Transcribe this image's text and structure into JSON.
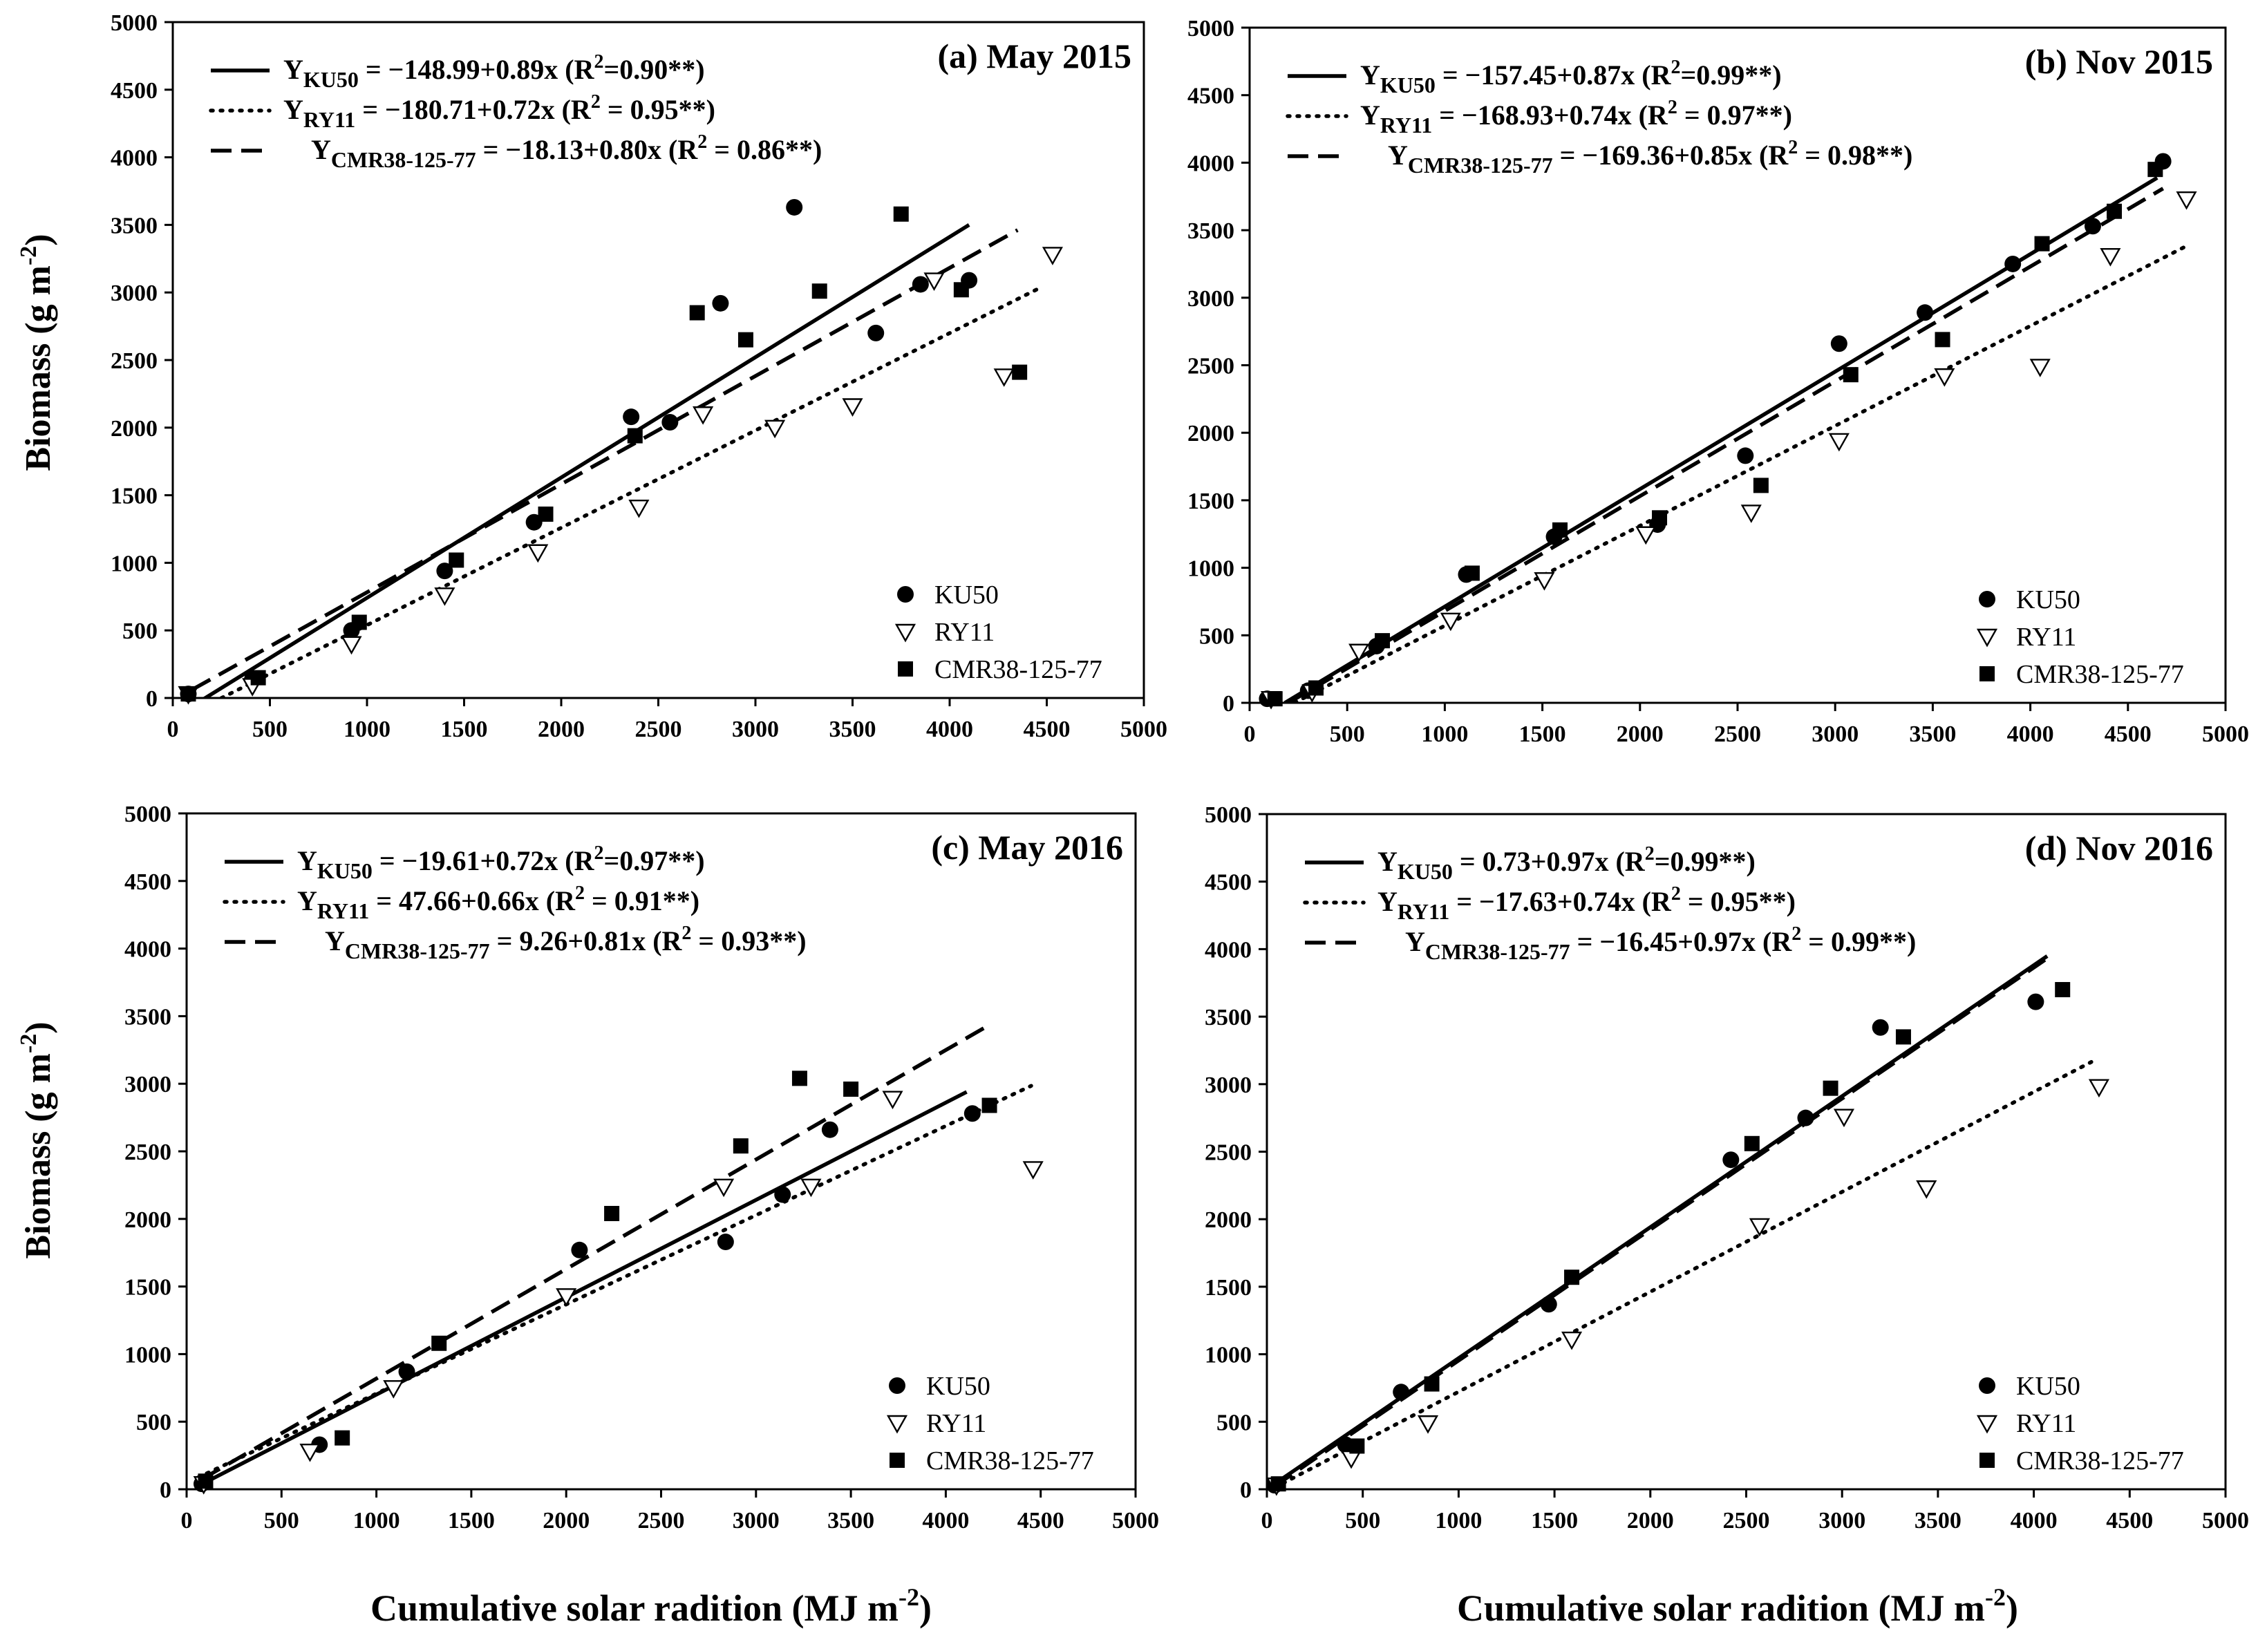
{
  "axis_labels": {
    "ylabel": "Biomass (g m",
    "ylabel_exp": "-2",
    "ylabel_close": ")",
    "xlabel": "Cumulative solar radition (MJ m",
    "xlabel_exp": "-2",
    "xlabel_close": ")"
  },
  "legend_labels": [
    "KU50",
    "RY11",
    "CMR38-125-77"
  ],
  "chart_data": [
    {
      "type": "scatter",
      "title": "(a) May 2015",
      "xlabel": "Cumulative solar radition (MJ m-2)",
      "ylabel": "Biomass (g m-2)",
      "xlim": [
        0,
        5000
      ],
      "ylim": [
        0,
        5000
      ],
      "xticks": [
        "0",
        "500",
        "1000",
        "1500",
        "2000",
        "2500",
        "3000",
        "3500",
        "4000",
        "4500",
        "5000"
      ],
      "yticks": [
        "0",
        "500",
        "1000",
        "1500",
        "2000",
        "2500",
        "3000",
        "3500",
        "4000",
        "4500",
        "5000"
      ],
      "series": [
        {
          "name": "KU50",
          "marker": "circle",
          "line_style": "solid",
          "eq_sub": "KU50",
          "eq_text": " = −148.99+0.89x (R",
          "eq_r2": "=0.90**)",
          "fit": {
            "intercept": -148.99,
            "slope": 0.89,
            "x_range": [
              80,
              4100
            ]
          },
          "points": [
            [
              80,
              30
            ],
            [
              410,
              140
            ],
            [
              920,
              500
            ],
            [
              1400,
              940
            ],
            [
              1860,
              1300
            ],
            [
              2360,
              2080
            ],
            [
              2560,
              2040
            ],
            [
              2820,
              2920
            ],
            [
              3200,
              3630
            ],
            [
              3620,
              2700
            ],
            [
              3850,
              3060
            ],
            [
              4100,
              3090
            ]
          ]
        },
        {
          "name": "RY11",
          "marker": "triangle-down-open",
          "line_style": "dotted",
          "eq_sub": "RY11",
          "eq_text": " = −180.71+0.72x (R",
          "eq_r2": " = 0.95**)",
          "fit": {
            "intercept": -180.71,
            "slope": 0.72,
            "x_range": [
              250,
              4450
            ]
          },
          "points": [
            [
              80,
              30
            ],
            [
              410,
              90
            ],
            [
              920,
              400
            ],
            [
              1400,
              760
            ],
            [
              1880,
              1080
            ],
            [
              2400,
              1410
            ],
            [
              2730,
              2100
            ],
            [
              3100,
              2000
            ],
            [
              3500,
              2160
            ],
            [
              3920,
              3090
            ],
            [
              4280,
              2380
            ],
            [
              4530,
              3280
            ]
          ]
        },
        {
          "name": "CMR38-125-77",
          "marker": "square",
          "line_style": "dashed",
          "eq_sub": "CMR38-125-77",
          "eq_text": " = −18.13+0.80x (R",
          "eq_r2": " = 0.86**)",
          "fit": {
            "intercept": -18.13,
            "slope": 0.8,
            "x_range": [
              100,
              4350
            ]
          },
          "points": [
            [
              80,
              30
            ],
            [
              440,
              150
            ],
            [
              960,
              560
            ],
            [
              1460,
              1020
            ],
            [
              1920,
              1360
            ],
            [
              2380,
              1940
            ],
            [
              2700,
              2850
            ],
            [
              2950,
              2650
            ],
            [
              3330,
              3010
            ],
            [
              3750,
              3580
            ],
            [
              4060,
              3020
            ],
            [
              4360,
              2410
            ]
          ]
        }
      ]
    },
    {
      "type": "scatter",
      "title": "(b) Nov 2015",
      "xlabel": "Cumulative solar radition (MJ m-2)",
      "ylabel": "Biomass (g m-2)",
      "xlim": [
        0,
        5000
      ],
      "ylim": [
        0,
        5000
      ],
      "xticks": [
        "0",
        "500",
        "1000",
        "1500",
        "2000",
        "2500",
        "3000",
        "3500",
        "4000",
        "4500",
        "5000"
      ],
      "yticks": [
        "0",
        "500",
        "1000",
        "1500",
        "2000",
        "2500",
        "3000",
        "3500",
        "4000",
        "4500",
        "5000"
      ],
      "series": [
        {
          "name": "KU50",
          "marker": "circle",
          "line_style": "solid",
          "eq_sub": "KU50",
          "eq_text": " = −157.45+0.87x (R",
          "eq_r2": "=0.99**)",
          "fit": {
            "intercept": -157.45,
            "slope": 0.87,
            "x_range": [
              180,
              4650
            ]
          },
          "points": [
            [
              90,
              30
            ],
            [
              300,
              90
            ],
            [
              650,
              420
            ],
            [
              1110,
              950
            ],
            [
              1560,
              1230
            ],
            [
              2090,
              1320
            ],
            [
              2540,
              1830
            ],
            [
              3020,
              2660
            ],
            [
              3460,
              2890
            ],
            [
              3910,
              3250
            ],
            [
              4320,
              3530
            ],
            [
              4680,
              4010
            ]
          ]
        },
        {
          "name": "RY11",
          "marker": "triangle-down-open",
          "line_style": "dotted",
          "eq_sub": "RY11",
          "eq_text": " = −168.93+0.74x (R",
          "eq_r2": " = 0.97**)",
          "fit": {
            "intercept": -168.93,
            "slope": 0.74,
            "x_range": [
              230,
              4800
            ]
          },
          "points": [
            [
              110,
              30
            ],
            [
              320,
              80
            ],
            [
              560,
              380
            ],
            [
              1030,
              610
            ],
            [
              1510,
              910
            ],
            [
              2030,
              1250
            ],
            [
              2570,
              1410
            ],
            [
              3020,
              1940
            ],
            [
              3560,
              2420
            ],
            [
              4050,
              2490
            ],
            [
              4410,
              3310
            ],
            [
              4800,
              3730
            ]
          ]
        },
        {
          "name": "CMR38-125-77",
          "marker": "square",
          "line_style": "dashed",
          "eq_sub": "CMR38-125-77",
          "eq_text": " = −169.36+0.85x (R",
          "eq_r2": " = 0.98**)",
          "fit": {
            "intercept": -169.36,
            "slope": 0.85,
            "x_range": [
              200,
              4680
            ]
          },
          "points": [
            [
              130,
              30
            ],
            [
              340,
              110
            ],
            [
              680,
              460
            ],
            [
              1140,
              960
            ],
            [
              1590,
              1280
            ],
            [
              2100,
              1370
            ],
            [
              2620,
              1610
            ],
            [
              3080,
              2430
            ],
            [
              3550,
              2690
            ],
            [
              4060,
              3400
            ],
            [
              4430,
              3640
            ],
            [
              4640,
              3950
            ]
          ]
        }
      ]
    },
    {
      "type": "scatter",
      "title": "(c) May 2016",
      "xlabel": "Cumulative solar radition (MJ m-2)",
      "ylabel": "Biomass (g m-2)",
      "xlim": [
        0,
        5000
      ],
      "ylim": [
        0,
        5000
      ],
      "xticks": [
        "0",
        "500",
        "1000",
        "1500",
        "2000",
        "2500",
        "3000",
        "3500",
        "4000",
        "4500",
        "5000"
      ],
      "yticks": [
        "0",
        "500",
        "1000",
        "1500",
        "2000",
        "2500",
        "3000",
        "3500",
        "4000",
        "4500",
        "5000"
      ],
      "series": [
        {
          "name": "KU50",
          "marker": "circle",
          "line_style": "solid",
          "eq_sub": "KU50",
          "eq_text": " = −19.61+0.72x (R",
          "eq_r2": "=0.97**)",
          "fit": {
            "intercept": -19.61,
            "slope": 0.72,
            "x_range": [
              90,
              4110
            ]
          },
          "points": [
            [
              80,
              40
            ],
            [
              700,
              330
            ],
            [
              1160,
              870
            ],
            [
              2070,
              1770
            ],
            [
              2840,
              1830
            ],
            [
              3140,
              2180
            ],
            [
              3390,
              2660
            ],
            [
              4140,
              2780
            ]
          ]
        },
        {
          "name": "RY11",
          "marker": "triangle-down-open",
          "line_style": "dotted",
          "eq_sub": "RY11",
          "eq_text": " = 47.66+0.66x (R",
          "eq_r2": " = 0.91**)",
          "fit": {
            "intercept": 47.66,
            "slope": 0.66,
            "x_range": [
              60,
              4450
            ]
          },
          "points": [
            [
              90,
              40
            ],
            [
              650,
              280
            ],
            [
              1090,
              750
            ],
            [
              2000,
              1430
            ],
            [
              2830,
              2240
            ],
            [
              3290,
              2240
            ],
            [
              3720,
              2890
            ],
            [
              4460,
              2370
            ]
          ]
        },
        {
          "name": "CMR38-125-77",
          "marker": "square",
          "line_style": "dashed",
          "eq_sub": "CMR38-125-77",
          "eq_text": " = 9.26+0.81x (R",
          "eq_r2": " = 0.93**)",
          "fit": {
            "intercept": 9.26,
            "slope": 0.81,
            "x_range": [
              80,
              4220
            ]
          },
          "points": [
            [
              100,
              60
            ],
            [
              820,
              380
            ],
            [
              1330,
              1080
            ],
            [
              2240,
              2040
            ],
            [
              2920,
              2540
            ],
            [
              3230,
              3040
            ],
            [
              3500,
              2960
            ],
            [
              4230,
              2840
            ]
          ]
        }
      ]
    },
    {
      "type": "scatter",
      "title": "(d) Nov 2016",
      "xlabel": "Cumulative solar radition (MJ m-2)",
      "ylabel": "Biomass (g m-2)",
      "xlim": [
        0,
        5000
      ],
      "ylim": [
        0,
        5000
      ],
      "xticks": [
        "0",
        "500",
        "1000",
        "1500",
        "2000",
        "2500",
        "3000",
        "3500",
        "4000",
        "4500",
        "5000"
      ],
      "yticks": [
        "0",
        "500",
        "1000",
        "1500",
        "2000",
        "2500",
        "3000",
        "3500",
        "4000",
        "4500",
        "5000"
      ],
      "series": [
        {
          "name": "KU50",
          "marker": "circle",
          "line_style": "solid",
          "eq_sub": "KU50",
          "eq_text": " = 0.73+0.97x (R",
          "eq_r2": "=0.99**)",
          "fit": {
            "intercept": 0.73,
            "slope": 0.97,
            "x_range": [
              40,
              4070
            ]
          },
          "points": [
            [
              40,
              30
            ],
            [
              410,
              330
            ],
            [
              700,
              720
            ],
            [
              1470,
              1370
            ],
            [
              2420,
              2440
            ],
            [
              2810,
              2750
            ],
            [
              3200,
              3420
            ],
            [
              4010,
              3610
            ]
          ]
        },
        {
          "name": "RY11",
          "marker": "triangle-down-open",
          "line_style": "dotted",
          "eq_sub": "RY11",
          "eq_text": " = −17.63+0.74x (R",
          "eq_r2": " = 0.95**)",
          "fit": {
            "intercept": -17.63,
            "slope": 0.74,
            "x_range": [
              40,
              4300
            ]
          },
          "points": [
            [
              50,
              30
            ],
            [
              440,
              230
            ],
            [
              840,
              490
            ],
            [
              1590,
              1110
            ],
            [
              2570,
              1950
            ],
            [
              3010,
              2760
            ],
            [
              3440,
              2230
            ],
            [
              4340,
              2980
            ]
          ]
        },
        {
          "name": "CMR38-125-77",
          "marker": "square",
          "line_style": "dashed",
          "eq_sub": "CMR38-125-77",
          "eq_text": " = −16.45+0.97x (R",
          "eq_r2": " = 0.99**)",
          "fit": {
            "intercept": -16.45,
            "slope": 0.97,
            "x_range": [
              40,
              4080
            ]
          },
          "points": [
            [
              60,
              40
            ],
            [
              470,
              320
            ],
            [
              860,
              780
            ],
            [
              1590,
              1570
            ],
            [
              2530,
              2560
            ],
            [
              2940,
              2970
            ],
            [
              3320,
              3350
            ],
            [
              4150,
              3700
            ]
          ]
        }
      ]
    }
  ]
}
